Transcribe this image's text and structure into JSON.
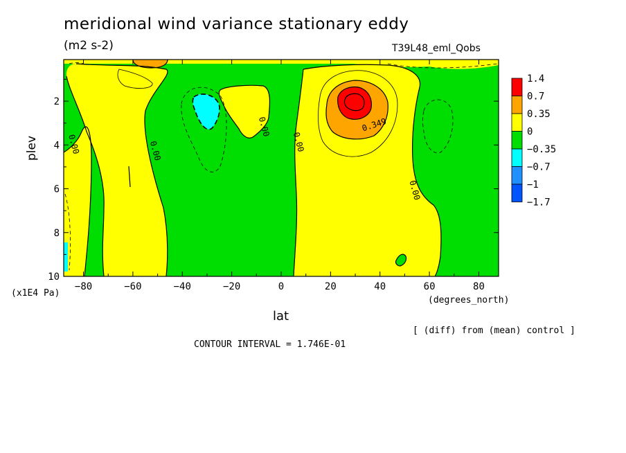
{
  "title": "meridional wind variance  stationary eddy",
  "units": "(m2 s-2)",
  "run_label": "T39L48_eml_Qobs",
  "footer": {
    "diff_note": "[ (diff) from (mean) control ]",
    "contour_interval": "CONTOUR INTERVAL = 1.746E-01"
  },
  "chart_data": {
    "type": "heatmap",
    "title": "meridional wind variance  stationary eddy",
    "subtitle": "(m2 s-2)",
    "xlabel": "lat",
    "x_unit": "(degrees_north)",
    "ylabel": "plev",
    "y_unit": "(x1E4 Pa)",
    "xlim": [
      -88,
      88
    ],
    "ylim": [
      10,
      0.1
    ],
    "x_ticks": [
      -80,
      -60,
      -40,
      -20,
      0,
      20,
      40,
      60,
      80
    ],
    "x_tick_labels": [
      "−80",
      "−60",
      "−40",
      "−20",
      "0",
      "20",
      "40",
      "60",
      "80"
    ],
    "y_ticks": [
      2,
      4,
      6,
      8,
      10
    ],
    "y_tick_labels": [
      "2",
      "4",
      "6",
      "8",
      "10"
    ],
    "contour_interval": 0.1746,
    "legend": {
      "placement": "right",
      "labels": [
        "1.4",
        "0.7",
        "0.35",
        "0",
        "−0.35",
        "−0.7",
        "−1",
        "−1.7"
      ],
      "colors": [
        "#ff0000",
        "#ffa500",
        "#ffff00",
        "#00dd00",
        "#00ffff",
        "#1e90ff",
        "#0055ff"
      ]
    },
    "contour_labels": [
      {
        "text": "0.00",
        "lat": -85,
        "plev": 4.0
      },
      {
        "text": "0.00",
        "lat": -52,
        "plev": 4.3
      },
      {
        "text": "0.00",
        "lat": -8,
        "plev": 3.2
      },
      {
        "text": "0.00",
        "lat": 6,
        "plev": 3.9
      },
      {
        "text": "0.349",
        "lat": 38,
        "plev": 3.2
      },
      {
        "text": "0.00",
        "lat": 53,
        "plev": 6.1
      }
    ]
  }
}
